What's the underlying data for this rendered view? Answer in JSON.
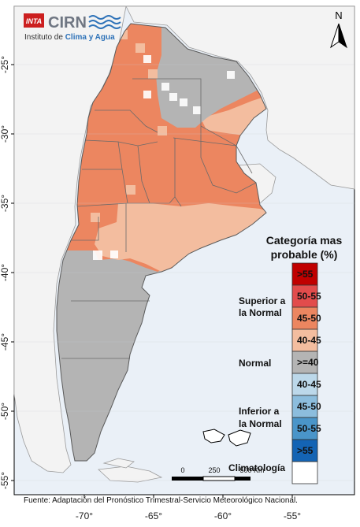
{
  "logo": {
    "inta": "INTA",
    "cirn": "CIRN",
    "subtitle_prefix": "Instituto de ",
    "subtitle_emphasis": "Clima y Agua"
  },
  "north_arrow": {
    "label": "N"
  },
  "axes": {
    "lat_ticks": [
      "-25°",
      "-30°",
      "-35°",
      "-40°",
      "-45°",
      "-50°",
      "-55°"
    ],
    "lon_ticks": [
      "-70°",
      "-65°",
      "-60°",
      "-55°"
    ]
  },
  "legend": {
    "title_line1": "Categoría mas",
    "title_line2": "probable (%)",
    "groups": {
      "superior": [
        "Superior a",
        "la Normal"
      ],
      "normal": "Normal",
      "inferior": [
        "Inferior a",
        "la Normal"
      ],
      "climatologia": "Climatología"
    },
    "classes": [
      {
        "label": ">55",
        "color": "#c00000"
      },
      {
        "label": "50-55",
        "color": "#e24c4c"
      },
      {
        "label": "45-50",
        "color": "#ec8660"
      },
      {
        "label": "40-45",
        "color": "#f3bd9f"
      },
      {
        "label": ">=40",
        "color": "#b4b4b4"
      },
      {
        "label": "40-45",
        "color": "#bcd8ea"
      },
      {
        "label": "45-50",
        "color": "#8cbddd"
      },
      {
        "label": "50-55",
        "color": "#4a95c9"
      },
      {
        "label": ">55",
        "color": "#1464b4"
      },
      {
        "label": "",
        "color": "#ffffff"
      }
    ]
  },
  "scale_bar": {
    "labels": [
      "0",
      "250",
      "500 Km"
    ]
  },
  "source": "Fuente: Adaptación del Pronóstico Trimestral-Servicio Meteorológico Nacional.",
  "colors": {
    "sea": "#eaf0f7",
    "neighbor_land": "#f2f2f2",
    "superior_45_50": "#ec8660",
    "superior_40_45": "#f3bd9f",
    "normal": "#b4b4b4",
    "climatologia": "#ffffff"
  }
}
